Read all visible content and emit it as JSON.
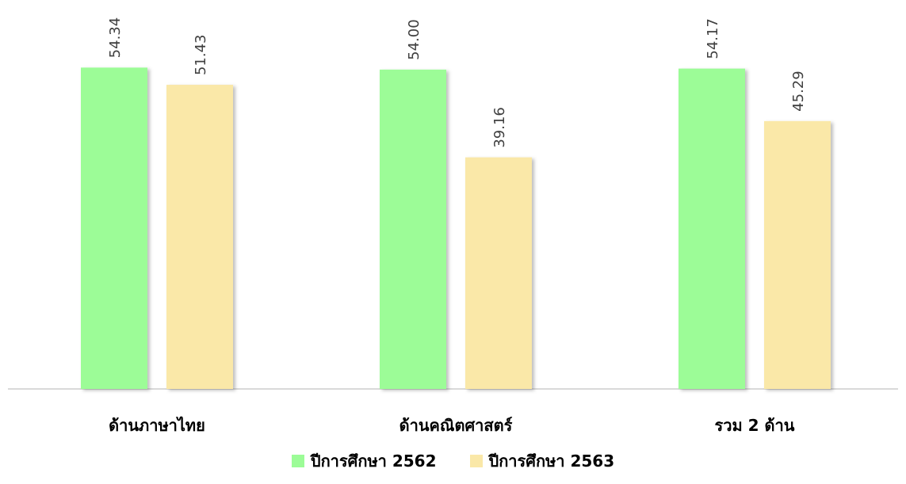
{
  "chart_data": {
    "type": "bar",
    "title": "",
    "xlabel": "",
    "ylabel": "",
    "categories": [
      "ด้านภาษาไทย",
      "ด้านคณิตศาสตร์",
      "รวม 2 ด้าน"
    ],
    "series": [
      {
        "name": "ปีการศึกษา 2562",
        "values": [
          54.34,
          54.0,
          54.17
        ],
        "labels": [
          "54.34",
          "54.00",
          "54.17"
        ],
        "color": "#9cfc97"
      },
      {
        "name": "ปีการศึกษา 2563",
        "values": [
          51.43,
          39.16,
          45.29
        ],
        "labels": [
          "51.43",
          "39.16",
          "45.29"
        ],
        "color": "#fae8a8"
      }
    ],
    "ylim": [
      0,
      58
    ],
    "grid": false,
    "legend_position": "bottom"
  }
}
